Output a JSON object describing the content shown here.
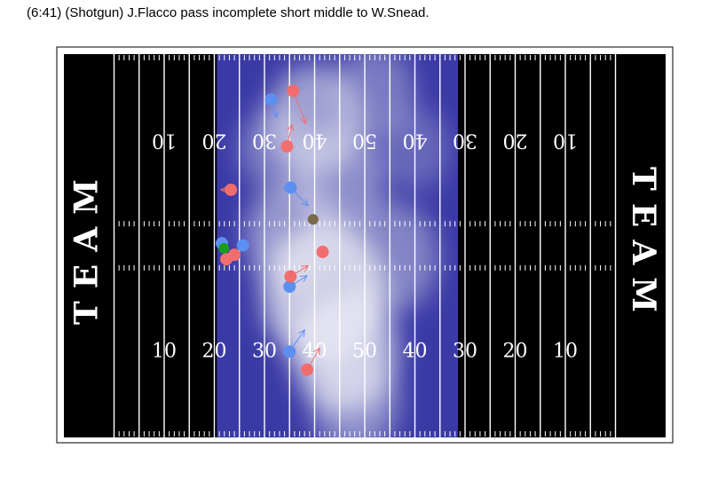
{
  "title": "(6:41) (Shotgun) J.Flacco pass incomplete short middle to W.Snead.",
  "chart_data": {
    "type": "scatter",
    "title": "(6:41) (Shotgun) J.Flacco pass incomplete short middle to W.Snead.",
    "xlim": [
      -10,
      110
    ],
    "ylim": [
      0,
      53.3
    ],
    "xlabel": "",
    "ylabel": "",
    "endzone_labels": [
      "TEAM",
      "TEAM"
    ],
    "yard_labels_bottom": [
      "10",
      "20",
      "30",
      "40",
      "50",
      "40",
      "30",
      "20",
      "10"
    ],
    "yard_labels_top": [
      "10",
      "20",
      "30",
      "40",
      "50",
      "40",
      "30",
      "20",
      "10"
    ],
    "yard_label_positions": [
      10,
      20,
      30,
      40,
      50,
      60,
      70,
      80,
      90
    ],
    "colors": {
      "field": "#000000",
      "lines": "#ffffff",
      "offense": "#5b8ff2",
      "defense": "#f26d6d",
      "ball": "#1a9e1a",
      "ball_carrier": "#7a6a4a",
      "density_low": "#3a3aa6",
      "density_high": "#f0f0f6"
    },
    "series": [
      {
        "points": [
          {
            "x": 21.5,
            "y": 27.0,
            "dx": 0,
            "dy": 0
          },
          {
            "x": 25.7,
            "y": 26.7,
            "dx": 0,
            "dy": 0
          },
          {
            "x": 31.3,
            "y": 46.9,
            "dx": 1.2,
            "dy": -2.5
          },
          {
            "x": 35.2,
            "y": 34.7,
            "dx": 3.5,
            "dy": -2.5
          },
          {
            "x": 35.0,
            "y": 21.0,
            "dx": 3.5,
            "dy": 1.5
          },
          {
            "x": 35.0,
            "y": 12.0,
            "dx": 3.0,
            "dy": 3.0
          }
        ]
      },
      {
        "points": [
          {
            "x": 35.7,
            "y": 48.1,
            "dx": 2.5,
            "dy": -4.5
          },
          {
            "x": 34.5,
            "y": 40.4,
            "dx": 1.0,
            "dy": 3.0
          },
          {
            "x": 23.3,
            "y": 34.4,
            "dx": -2.0,
            "dy": 0
          },
          {
            "x": 22.4,
            "y": 24.8,
            "dx": 0,
            "dy": 0
          },
          {
            "x": 24.0,
            "y": 25.4,
            "dx": 0,
            "dy": 0
          },
          {
            "x": 41.6,
            "y": 25.8,
            "dx": 0,
            "dy": 0
          },
          {
            "x": 35.2,
            "y": 22.4,
            "dx": 3.5,
            "dy": 1.5
          },
          {
            "x": 38.5,
            "y": 9.5,
            "dx": 2.5,
            "dy": 3.0
          }
        ]
      },
      {
        "points": [
          {
            "x": 21.9,
            "y": 26.3
          }
        ]
      },
      {
        "points": [
          {
            "x": 39.7,
            "y": 30.3
          }
        ]
      }
    ]
  }
}
